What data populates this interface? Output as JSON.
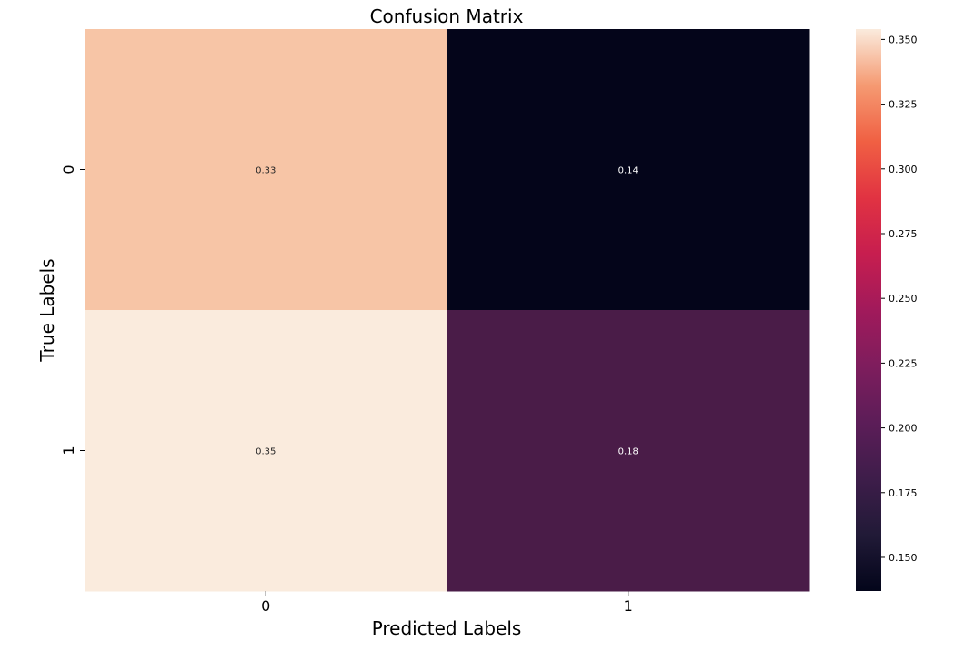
{
  "chart_data": {
    "type": "heatmap",
    "title": "Confusion Matrix",
    "xlabel": "Predicted Labels",
    "ylabel": "True Labels",
    "x_categories": [
      "0",
      "1"
    ],
    "y_categories": [
      "0",
      "1"
    ],
    "values": [
      [
        0.33,
        0.14
      ],
      [
        0.35,
        0.18
      ]
    ],
    "annotations": [
      [
        "0.33",
        "0.14"
      ],
      [
        "0.35",
        "0.18"
      ]
    ],
    "colormap": "rocket",
    "colorbar": {
      "range": [
        0.137,
        0.354
      ],
      "ticks": [
        0.15,
        0.175,
        0.2,
        0.225,
        0.25,
        0.275,
        0.3,
        0.325,
        0.35
      ],
      "tick_labels": [
        "0.150",
        "0.175",
        "0.200",
        "0.225",
        "0.250",
        "0.275",
        "0.300",
        "0.325",
        "0.350"
      ]
    },
    "cell_colors": [
      [
        "#f7c5a6",
        "#04051a"
      ],
      [
        "#faebdd",
        "#4a1c48"
      ]
    ],
    "text_colors": {
      "light_cells": "#262626",
      "dark_cells": "#ffffff"
    }
  }
}
